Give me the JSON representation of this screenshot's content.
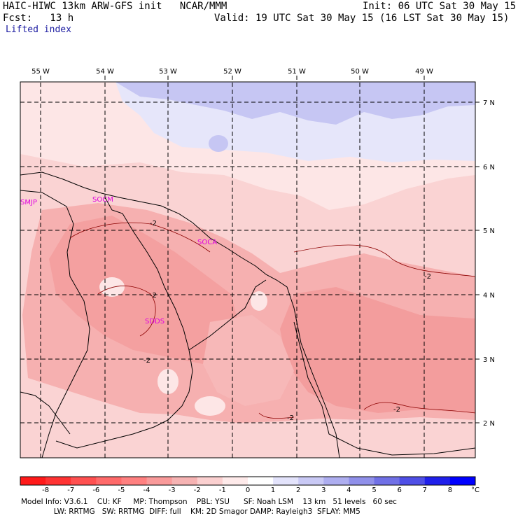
{
  "header": {
    "model_line": "HAIC-HIWC 13km ARW-GFS init   NCAR/MMM",
    "init_line": "Init: 06 UTC Sat 30 May 15",
    "fcst_line": "Fcst:   13 h",
    "valid_line": "Valid: 19 UTC Sat 30 May 15 (16 LST Sat 30 May 15)",
    "field_name": "Lifted index"
  },
  "map": {
    "lon_labels": [
      "55 W",
      "54 W",
      "53 W",
      "52 W",
      "51 W",
      "50 W",
      "49 W"
    ],
    "lat_labels": [
      "7 N",
      "6 N",
      "5 N",
      "4 N",
      "3 N",
      "2 N"
    ],
    "stations": [
      "SMJP",
      "SOCM",
      "SOCA",
      "SDDS"
    ],
    "contour_label": "-2",
    "colors": {
      "station": "#e000e0",
      "negative_light": "#fde6e6",
      "negative_mid": "#f8c6c6",
      "negative_strong": "#f4a3a3",
      "positive_light": "#e8e8fb",
      "positive_mid": "#c8c8f4"
    }
  },
  "colorbar": {
    "labels": [
      "-8",
      "-7",
      "-6",
      "-5",
      "-4",
      "-3",
      "-2",
      "-1",
      "0",
      "1",
      "2",
      "3",
      "4",
      "5",
      "6",
      "7",
      "8",
      "°C"
    ],
    "colors": [
      "#ff1a1a",
      "#ff3333",
      "#ff5050",
      "#ff6a6a",
      "#ff8080",
      "#f99a9a",
      "#f6b3b3",
      "#fbd0d0",
      "#feeaea",
      "#ffffff",
      "#e3e3fb",
      "#c9c9f5",
      "#aeaef0",
      "#9090ea",
      "#7070e6",
      "#4f4fe6",
      "#2020ea",
      "#0000ff"
    ]
  },
  "footer": {
    "line1": "Model Info: V3.6.1    CU: KF     MP: Thompson    PBL: YSU      SF: Noah LSM    13 km   51 levels   60 sec",
    "line2": "              LW: RRTMG   SW: RRTMG  DIFF: full    KM: 2D Smagor DAMP: Rayleigh3  SFLAY: MM5"
  }
}
